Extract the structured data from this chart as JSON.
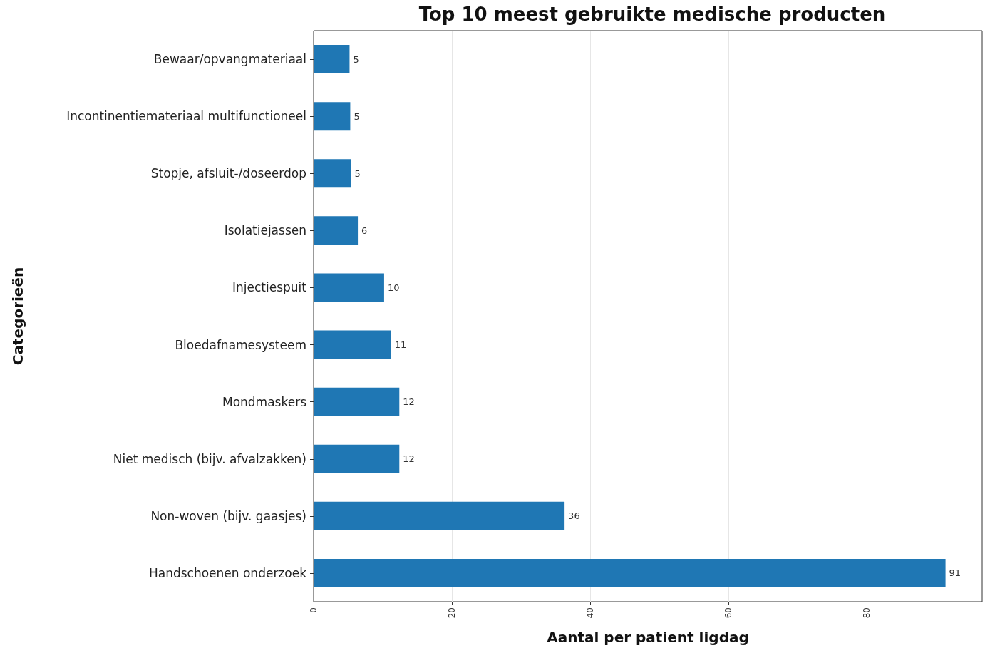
{
  "chart_data": {
    "type": "bar",
    "orientation": "horizontal",
    "title": "Top 10 meest gebruikte medische producten",
    "xlabel": "Aantal per patient ligdag",
    "ylabel": "Categorieën",
    "categories": [
      "Bewaar/opvangmateriaal",
      "Incontinentiemateriaal multifunctioneel",
      "Stopje, afsluit-/doseerdop",
      "Isolatiejassen",
      "Injectiespuit",
      "Bloedafnamesysteem",
      "Mondmaskers",
      "Niet medisch (bijv. afvalzakken)",
      "Non-woven (bijv. gaasjes)",
      "Handschoenen onderzoek"
    ],
    "values": [
      5.2,
      5.3,
      5.4,
      6.4,
      10.2,
      11.2,
      12.4,
      12.4,
      36.3,
      91.4
    ],
    "value_labels": [
      "5",
      "5",
      "5",
      "6",
      "10",
      "11",
      "12",
      "12",
      "36",
      "91"
    ],
    "color": "#1f77b4",
    "xlim": [
      0,
      96.7
    ],
    "xticks": [
      0,
      20,
      40,
      60,
      80
    ],
    "grid": "x"
  }
}
